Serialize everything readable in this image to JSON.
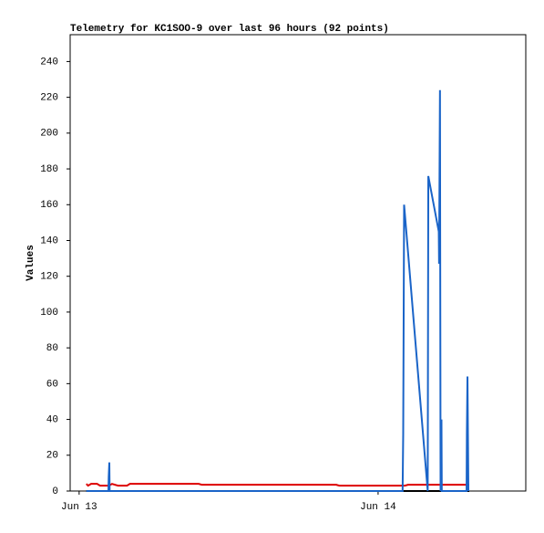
{
  "chart_data": {
    "type": "line",
    "title": "Telemetry for KC1SOO-9 over last 96 hours (92 points)",
    "y_label": "Values",
    "xlim": [
      12.97,
      14.494
    ],
    "xticks": [
      {
        "value": 13,
        "label": "Jun 13"
      },
      {
        "value": 14,
        "label": "Jun 14"
      }
    ],
    "ylim": [
      0,
      255
    ],
    "yticks": [
      0,
      20,
      40,
      60,
      80,
      100,
      120,
      140,
      160,
      180,
      200,
      220,
      240
    ],
    "series": [
      {
        "color": "#000000",
        "x": [
          13.024,
          14.305
        ],
        "values": [
          0,
          0
        ]
      },
      {
        "color": "#dd0000",
        "x": [
          13.024,
          13.03,
          13.04,
          13.06,
          13.07,
          13.1,
          13.11,
          13.13,
          13.16,
          13.17,
          13.4,
          13.41,
          13.86,
          13.87,
          14.09,
          14.1,
          14.305
        ],
        "values": [
          4,
          3,
          4,
          4,
          3,
          3,
          4,
          3,
          3,
          4,
          4,
          3.5,
          3.5,
          3,
          3,
          3.5,
          3.5
        ]
      },
      {
        "color": "#1a64c8",
        "x": [
          13.024,
          13.098,
          13.099,
          13.101,
          13.102,
          14.082,
          14.084,
          14.087,
          14.166,
          14.168,
          14.203,
          14.204,
          14.207,
          14.209,
          14.212,
          14.213,
          14.296,
          14.297,
          14.299,
          14.302
        ],
        "values": [
          0,
          0,
          8,
          16,
          0,
          0,
          32,
          160,
          0,
          176,
          145,
          127,
          224,
          0,
          40,
          0,
          0,
          32,
          64,
          0
        ]
      }
    ]
  }
}
